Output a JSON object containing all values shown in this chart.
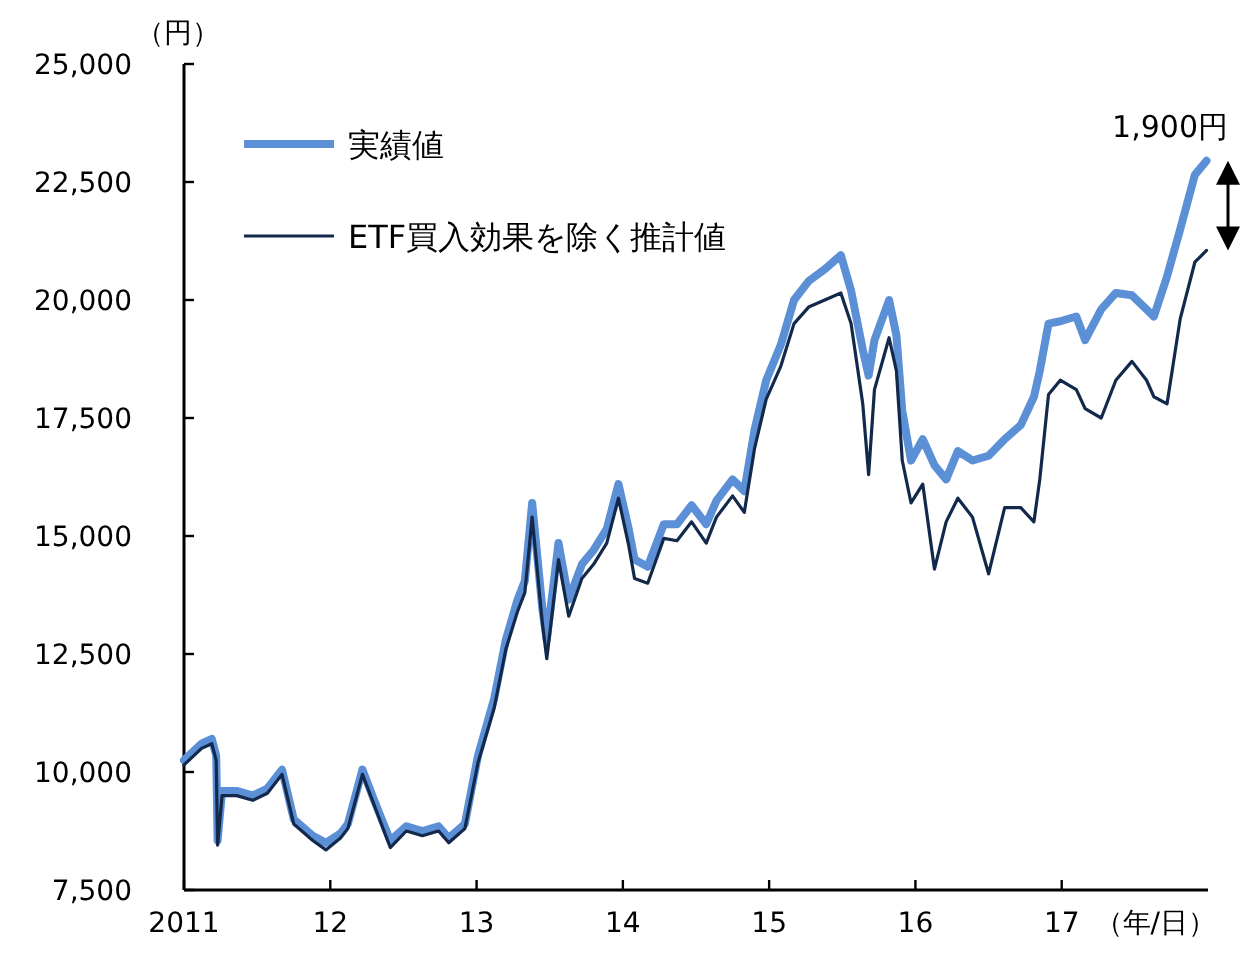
{
  "chart_data": {
    "type": "line",
    "ylabel": "（円）",
    "xlabel": "（年/日）",
    "xlim": [
      2011,
      2018
    ],
    "xticks": [
      {
        "value": 2011,
        "label": "2011"
      },
      {
        "value": 2012,
        "label": "12"
      },
      {
        "value": 2013,
        "label": "13"
      },
      {
        "value": 2014,
        "label": "14"
      },
      {
        "value": 2015,
        "label": "15"
      },
      {
        "value": 2016,
        "label": "16"
      },
      {
        "value": 2017,
        "label": "17"
      }
    ],
    "ylim": [
      7500,
      25000
    ],
    "yticks": [
      {
        "value": 7500,
        "label": "7,500"
      },
      {
        "value": 10000,
        "label": "10,000"
      },
      {
        "value": 12500,
        "label": "12,500"
      },
      {
        "value": 15000,
        "label": "15,000"
      },
      {
        "value": 17500,
        "label": "17,500"
      },
      {
        "value": 20000,
        "label": "20,000"
      },
      {
        "value": 22500,
        "label": "22,500"
      },
      {
        "value": 25000,
        "label": "25,000"
      }
    ],
    "grid": false,
    "legend": "top left",
    "marker": "none",
    "line_style": "solid",
    "annotations": [
      "1,900円"
    ],
    "series": [
      {
        "name": "実績値",
        "color": "#5b8fd6",
        "x": [
          2011.0,
          2011.12,
          2011.19,
          2011.22,
          2011.23,
          2011.26,
          2011.36,
          2011.47,
          2011.57,
          2011.67,
          2011.75,
          2011.88,
          2011.97,
          2012.07,
          2012.12,
          2012.22,
          2012.3,
          2012.41,
          2012.52,
          2012.63,
          2012.74,
          2012.81,
          2012.92,
          2013.01,
          2013.12,
          2013.2,
          2013.28,
          2013.33,
          2013.38,
          2013.45,
          2013.48,
          2013.56,
          2013.63,
          2013.72,
          2013.8,
          2013.89,
          2013.97,
          2014.04,
          2014.08,
          2014.17,
          2014.28,
          2014.37,
          2014.47,
          2014.57,
          2014.64,
          2014.75,
          2014.83,
          2014.9,
          2014.98,
          2015.08,
          2015.17,
          2015.27,
          2015.38,
          2015.49,
          2015.56,
          2015.64,
          2015.68,
          2015.72,
          2015.82,
          2015.87,
          2015.91,
          2015.97,
          2016.05,
          2016.13,
          2016.21,
          2016.29,
          2016.39,
          2016.5,
          2016.61,
          2016.72,
          2016.81,
          2016.85,
          2016.91,
          2016.99,
          2017.1,
          2017.16,
          2017.27,
          2017.37,
          2017.48,
          2017.58,
          2017.63,
          2017.72,
          2017.81,
          2017.91,
          2017.99
        ],
        "values": [
          10250,
          10600,
          10700,
          10350,
          8550,
          9600,
          9600,
          9500,
          9650,
          10050,
          9000,
          8650,
          8500,
          8700,
          8900,
          10050,
          9400,
          8550,
          8850,
          8750,
          8850,
          8600,
          8900,
          10350,
          11550,
          12800,
          13650,
          14050,
          15700,
          13450,
          12800,
          14850,
          13650,
          14400,
          14700,
          15150,
          16100,
          15150,
          14500,
          14350,
          15250,
          15250,
          15650,
          15250,
          15750,
          16200,
          15950,
          17250,
          18300,
          19050,
          20000,
          20400,
          20650,
          20950,
          20200,
          18950,
          18400,
          19150,
          20000,
          19250,
          17650,
          16600,
          17050,
          16500,
          16200,
          16800,
          16600,
          16700,
          17050,
          17350,
          17950,
          18500,
          19500,
          19550,
          19650,
          19150,
          19800,
          20150,
          20100,
          19800,
          19650,
          20500,
          21500,
          22650,
          22950
        ]
      },
      {
        "name": "ETF買入効果を除く推計値",
        "color": "#13294b",
        "x": [
          2011.0,
          2011.12,
          2011.19,
          2011.22,
          2011.23,
          2011.26,
          2011.36,
          2011.47,
          2011.57,
          2011.67,
          2011.75,
          2011.88,
          2011.97,
          2012.07,
          2012.12,
          2012.22,
          2012.3,
          2012.41,
          2012.52,
          2012.63,
          2012.74,
          2012.81,
          2012.92,
          2013.01,
          2013.12,
          2013.2,
          2013.28,
          2013.33,
          2013.38,
          2013.45,
          2013.48,
          2013.56,
          2013.63,
          2013.72,
          2013.8,
          2013.89,
          2013.97,
          2014.04,
          2014.08,
          2014.17,
          2014.28,
          2014.37,
          2014.47,
          2014.57,
          2014.64,
          2014.75,
          2014.83,
          2014.9,
          2014.98,
          2015.08,
          2015.17,
          2015.27,
          2015.38,
          2015.49,
          2015.56,
          2015.64,
          2015.68,
          2015.72,
          2015.82,
          2015.87,
          2015.91,
          2015.97,
          2016.05,
          2016.13,
          2016.21,
          2016.29,
          2016.39,
          2016.5,
          2016.61,
          2016.72,
          2016.81,
          2016.85,
          2016.91,
          2016.99,
          2017.1,
          2017.16,
          2017.27,
          2017.37,
          2017.48,
          2017.58,
          2017.63,
          2017.72,
          2017.81,
          2017.91,
          2017.99
        ],
        "values": [
          10150,
          10500,
          10600,
          10250,
          8450,
          9500,
          9500,
          9400,
          9550,
          9950,
          8900,
          8550,
          8350,
          8600,
          8800,
          9950,
          9300,
          8400,
          8750,
          8650,
          8750,
          8500,
          8800,
          10200,
          11350,
          12600,
          13400,
          13800,
          15400,
          13150,
          12400,
          14500,
          13300,
          14100,
          14400,
          14850,
          15800,
          14800,
          14100,
          14000,
          14950,
          14900,
          15300,
          14850,
          15400,
          15850,
          15500,
          16850,
          17900,
          18600,
          19500,
          19850,
          20000,
          20150,
          19500,
          17800,
          16300,
          18100,
          19200,
          18500,
          16600,
          15700,
          16100,
          14300,
          15300,
          15800,
          15400,
          14200,
          15600,
          15600,
          15300,
          16200,
          18000,
          18300,
          18100,
          17700,
          17500,
          18300,
          18700,
          18300,
          17950,
          17800,
          19600,
          20800,
          21050
        ]
      }
    ]
  }
}
